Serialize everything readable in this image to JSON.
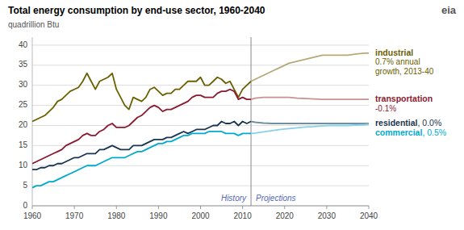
{
  "chart_data": {
    "type": "line",
    "title": "Total energy consumption by end-use sector, 1960-2040",
    "ylabel": "quadrillion Btu",
    "title_color": "#000000",
    "background_color": "#ffffff",
    "logo_text": "eia",
    "grid": true,
    "xlim": [
      1960,
      2040
    ],
    "xticks": [
      1960,
      1970,
      1980,
      1990,
      2000,
      2010,
      2020,
      2030,
      2040
    ],
    "ylim": [
      0,
      42
    ],
    "yticks": [
      0,
      5,
      10,
      15,
      20,
      25,
      30,
      35,
      40
    ],
    "divider": {
      "x": 2012,
      "left_label": "History",
      "right_label": "Projections"
    },
    "series": [
      {
        "color": "#6b6000",
        "x": [
          1960,
          1961,
          1962,
          1963,
          1964,
          1965,
          1966,
          1967,
          1968,
          1969,
          1970,
          1971,
          1972,
          1973,
          1974,
          1975,
          1976,
          1977,
          1978,
          1979,
          1980,
          1981,
          1982,
          1983,
          1984,
          1985,
          1986,
          1987,
          1988,
          1989,
          1990,
          1991,
          1992,
          1993,
          1994,
          1995,
          1996,
          1997,
          1998,
          1999,
          2000,
          2001,
          2002,
          2003,
          2004,
          2005,
          2006,
          2007,
          2008,
          2009,
          2010,
          2011,
          2012
        ],
        "values": [
          21,
          21.5,
          22,
          22.5,
          23.5,
          24.5,
          26,
          26.5,
          27.5,
          28.5,
          29,
          29.5,
          31,
          33,
          31,
          29,
          31,
          31.5,
          32,
          33,
          29,
          27,
          25,
          24,
          27,
          26.5,
          26,
          27,
          29,
          29.5,
          28.5,
          27.5,
          28,
          28,
          29,
          29,
          30,
          31,
          31,
          31,
          32,
          30,
          30,
          31,
          32,
          31.5,
          30.5,
          31,
          29,
          27,
          29,
          30,
          31
        ]
      },
      {
        "color": "#8b1a30",
        "x": [
          1960,
          1961,
          1962,
          1963,
          1964,
          1965,
          1966,
          1967,
          1968,
          1969,
          1970,
          1971,
          1972,
          1973,
          1974,
          1975,
          1976,
          1977,
          1978,
          1979,
          1980,
          1981,
          1982,
          1983,
          1984,
          1985,
          1986,
          1987,
          1988,
          1989,
          1990,
          1991,
          1992,
          1993,
          1994,
          1995,
          1996,
          1997,
          1998,
          1999,
          2000,
          2001,
          2002,
          2003,
          2004,
          2005,
          2006,
          2007,
          2008,
          2009,
          2010,
          2011,
          2012
        ],
        "values": [
          10.5,
          11,
          11.5,
          12,
          12.5,
          13,
          13.5,
          14,
          15,
          15.5,
          16,
          16.5,
          17.5,
          18,
          17.5,
          17.5,
          18.5,
          19,
          20,
          20.5,
          19.5,
          19.5,
          19.5,
          20,
          21,
          22,
          22.5,
          23.5,
          24.5,
          25,
          24.5,
          23.5,
          24,
          24,
          24.5,
          25,
          25.5,
          26,
          27,
          27.5,
          27.5,
          27,
          27,
          27,
          28,
          28.5,
          28.5,
          29,
          28.5,
          26.5,
          27,
          26.5,
          26.5
        ]
      },
      {
        "color": "#1a3550",
        "x": [
          1960,
          1961,
          1962,
          1963,
          1964,
          1965,
          1966,
          1967,
          1968,
          1969,
          1970,
          1971,
          1972,
          1973,
          1974,
          1975,
          1976,
          1977,
          1978,
          1979,
          1980,
          1981,
          1982,
          1983,
          1984,
          1985,
          1986,
          1987,
          1988,
          1989,
          1990,
          1991,
          1992,
          1993,
          1994,
          1995,
          1996,
          1997,
          1998,
          1999,
          2000,
          2001,
          2002,
          2003,
          2004,
          2005,
          2006,
          2007,
          2008,
          2009,
          2010,
          2011,
          2012
        ],
        "values": [
          9,
          9,
          9.5,
          9.5,
          10,
          10,
          10.5,
          10.5,
          11,
          11.5,
          12,
          12,
          12.5,
          13,
          13,
          13,
          14,
          14,
          14.5,
          15,
          14.5,
          14,
          14,
          14,
          15,
          15,
          15,
          15.5,
          16,
          16.5,
          16.5,
          16.5,
          17,
          17,
          17.5,
          18,
          18.5,
          18,
          18.5,
          19,
          19,
          19,
          19.5,
          20,
          20,
          21,
          20.5,
          20.5,
          21,
          20,
          21,
          20.5,
          21
        ]
      },
      {
        "color": "#00aacc",
        "x": [
          1960,
          1961,
          1962,
          1963,
          1964,
          1965,
          1966,
          1967,
          1968,
          1969,
          1970,
          1971,
          1972,
          1973,
          1974,
          1975,
          1976,
          1977,
          1978,
          1979,
          1980,
          1981,
          1982,
          1983,
          1984,
          1985,
          1986,
          1987,
          1988,
          1989,
          1990,
          1991,
          1992,
          1993,
          1994,
          1995,
          1996,
          1997,
          1998,
          1999,
          2000,
          2001,
          2002,
          2003,
          2004,
          2005,
          2006,
          2007,
          2008,
          2009,
          2010,
          2011,
          2012
        ],
        "values": [
          4.5,
          5,
          5,
          5.5,
          6,
          6,
          6.5,
          7,
          7.5,
          8,
          8.5,
          9,
          9.5,
          10,
          10,
          10,
          10.5,
          11,
          11.5,
          12,
          12,
          12,
          12,
          12.5,
          13,
          13.5,
          13.5,
          14,
          14.5,
          15,
          15.5,
          15.5,
          16,
          16,
          16.5,
          17,
          17.5,
          17.5,
          18,
          18,
          18,
          18,
          18.5,
          18.5,
          18.5,
          18.5,
          18,
          18,
          18,
          17.5,
          18,
          18,
          18
        ]
      },
      {
        "color": "#b8a878",
        "x": [
          2012,
          2013,
          2015,
          2017,
          2019,
          2021,
          2023,
          2025,
          2027,
          2029,
          2031,
          2033,
          2035,
          2037,
          2039,
          2040
        ],
        "values": [
          31,
          31.5,
          32.5,
          33.5,
          34.5,
          35.5,
          36.0,
          36.5,
          37.0,
          37.5,
          37.5,
          37.5,
          37.5,
          37.8,
          38.0,
          38.0
        ]
      },
      {
        "color": "#cc9090",
        "x": [
          2012,
          2013,
          2015,
          2017,
          2019,
          2021,
          2023,
          2025,
          2027,
          2029,
          2031,
          2033,
          2035,
          2037,
          2039,
          2040
        ],
        "values": [
          26.5,
          26.8,
          27.0,
          27.0,
          27.0,
          27.0,
          26.8,
          26.7,
          26.6,
          26.5,
          26.5,
          26.5,
          26.5,
          26.5,
          26.5,
          26.5
        ]
      },
      {
        "color": "#7090a0",
        "x": [
          2012,
          2013,
          2015,
          2017,
          2019,
          2021,
          2023,
          2025,
          2027,
          2029,
          2031,
          2033,
          2035,
          2037,
          2039,
          2040
        ],
        "values": [
          21,
          20.8,
          20.6,
          20.5,
          20.5,
          20.5,
          20.5,
          20.5,
          20.5,
          20.5,
          20.5,
          20.5,
          20.5,
          20.5,
          20.5,
          20.5
        ]
      },
      {
        "color": "#88d0e8",
        "x": [
          2012,
          2013,
          2015,
          2017,
          2019,
          2021,
          2023,
          2025,
          2027,
          2029,
          2031,
          2033,
          2035,
          2037,
          2039,
          2040
        ],
        "values": [
          18,
          18.1,
          18.4,
          18.7,
          19.0,
          19.2,
          19.4,
          19.6,
          19.7,
          19.9,
          20.0,
          20.0,
          20.0,
          20.1,
          20.2,
          20.3
        ]
      }
    ],
    "annotations": [
      {
        "name": "industrial",
        "note": "0.7% annual\ngrowth, 2013-40",
        "color": "#6b6000"
      },
      {
        "name": "transportation",
        "note": "-0.1%",
        "color": "#8b1a30"
      },
      {
        "name": "residential",
        "note": ", 0.0%",
        "color": "#1a3550"
      },
      {
        "name": "commercial",
        "note": ", 0.5%",
        "color": "#00aacc"
      }
    ]
  }
}
